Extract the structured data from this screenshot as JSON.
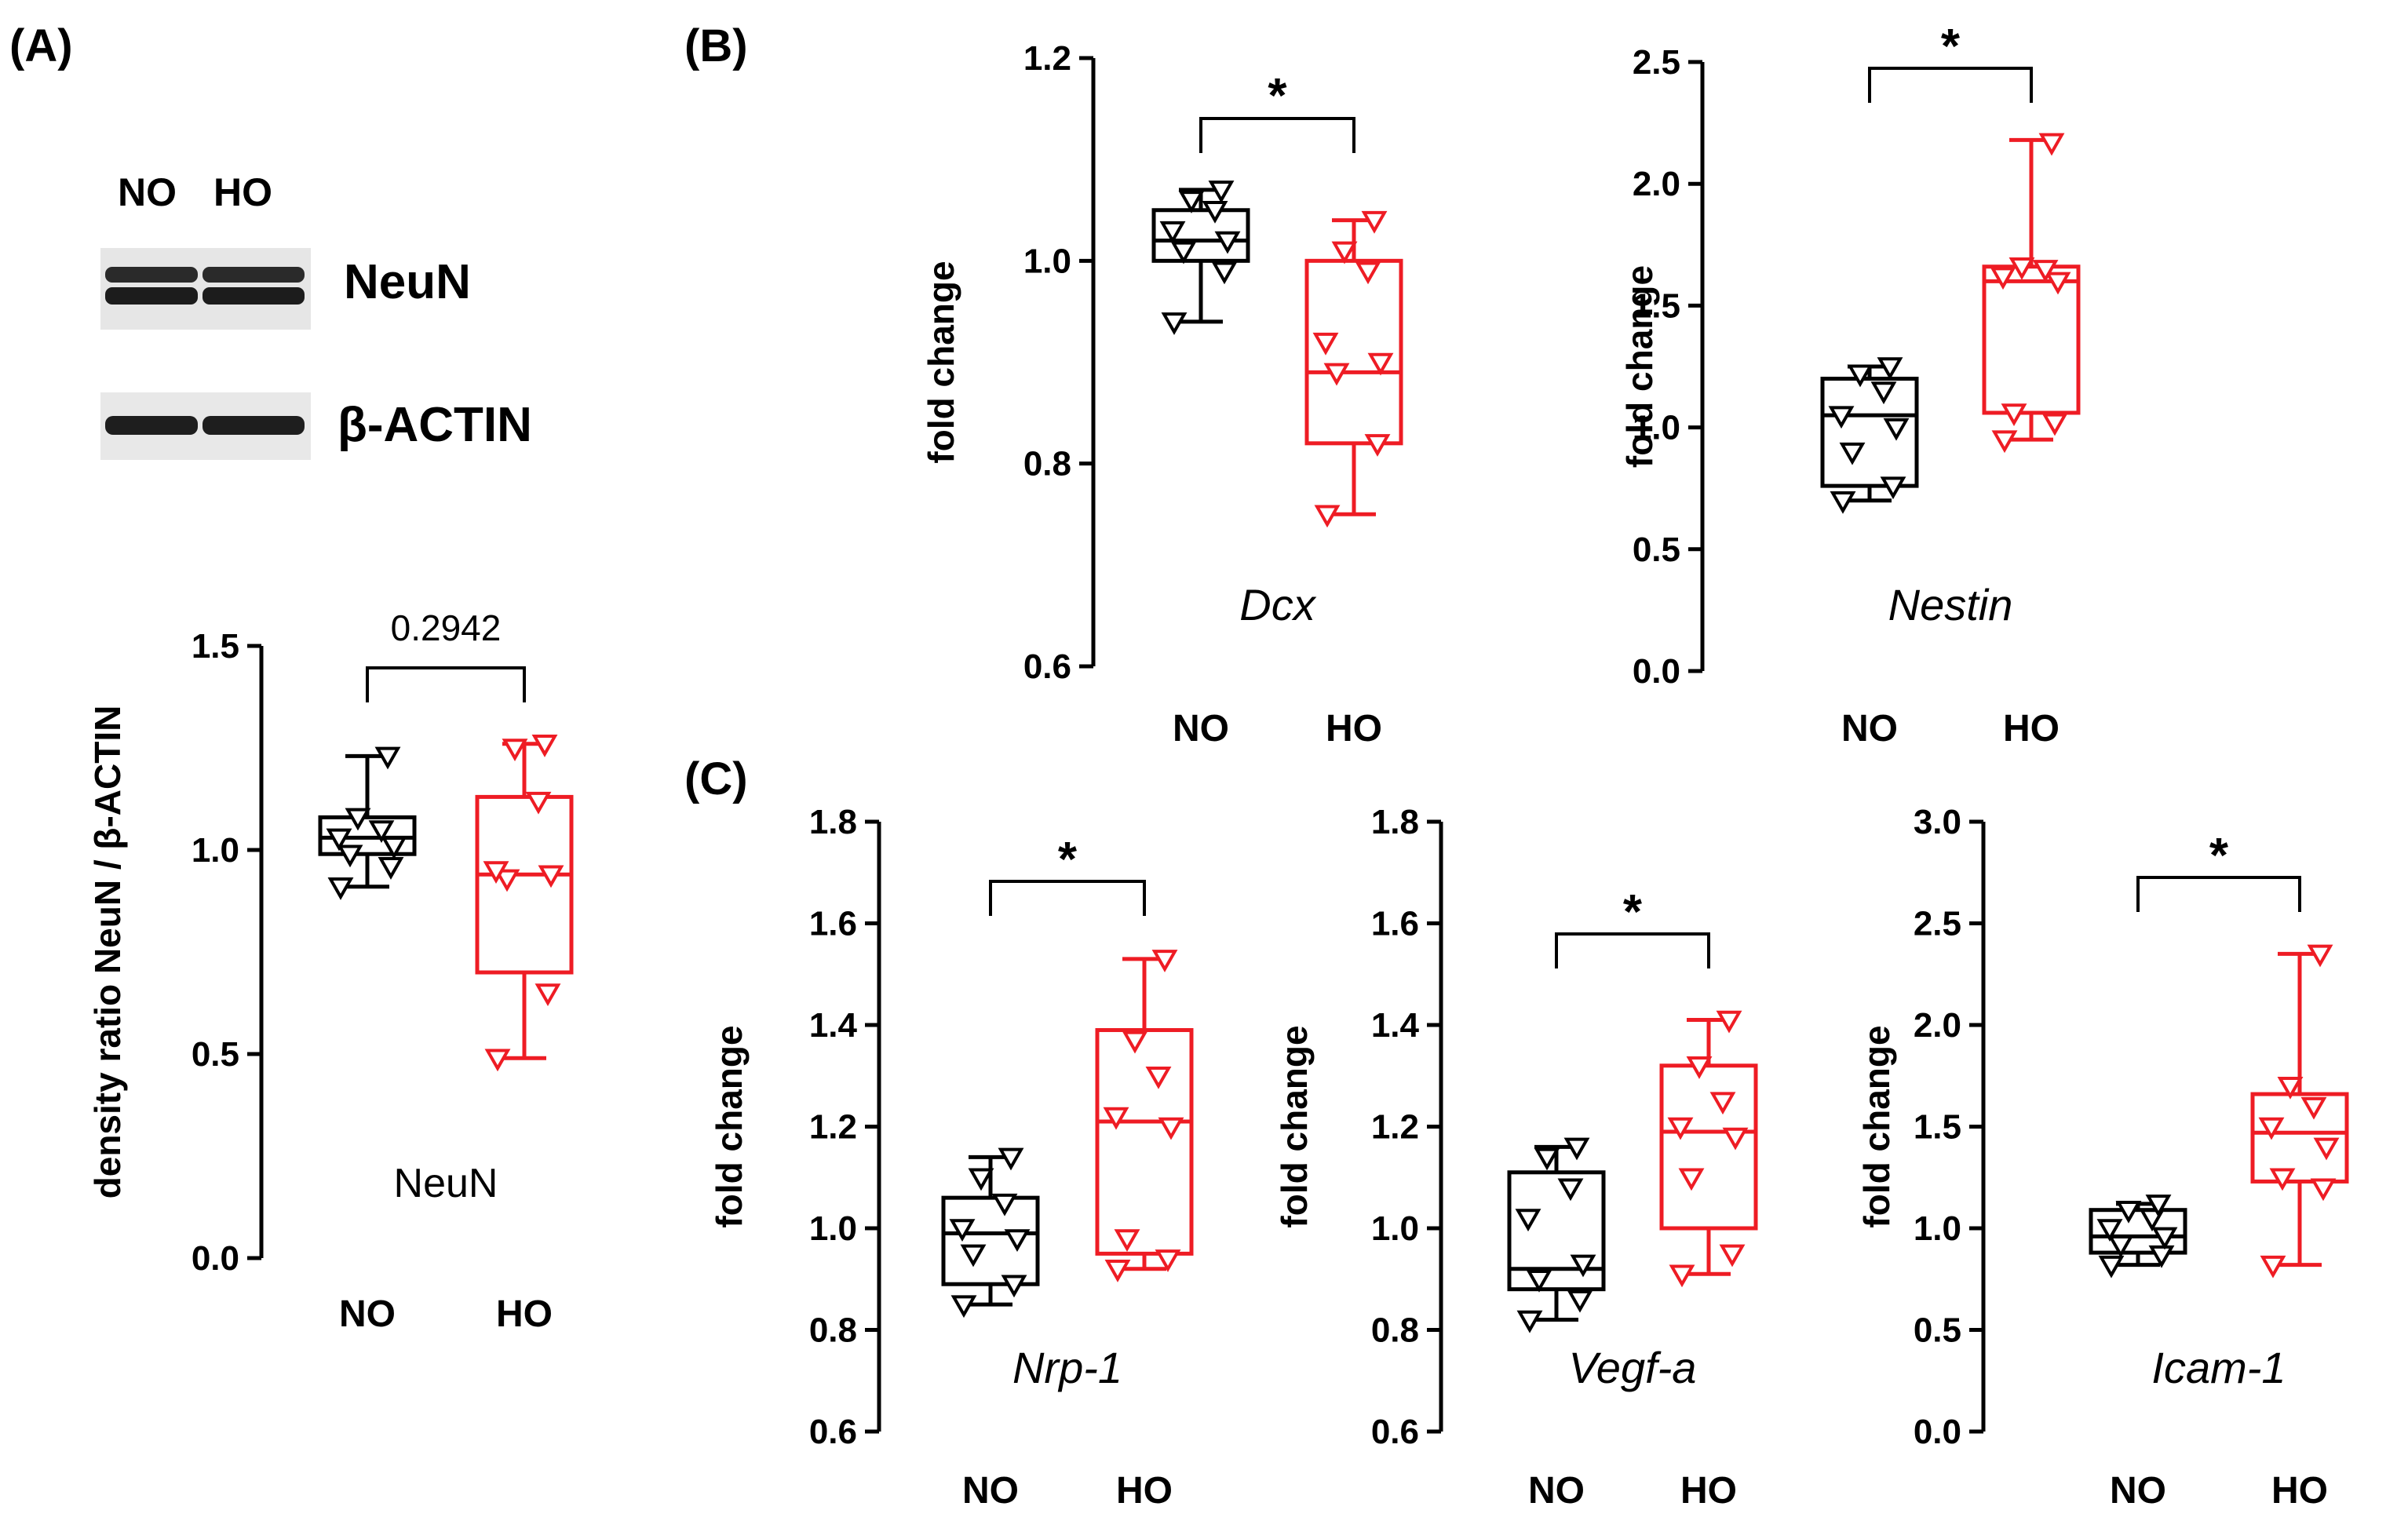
{
  "colors": {
    "NO": "#000000",
    "HO": "#ee1c24"
  },
  "blot": {
    "panel": "(A)",
    "lanes": [
      "NO",
      "HO"
    ],
    "rows": [
      {
        "name": "NeuN"
      },
      {
        "name": "β-ACTIN"
      }
    ]
  },
  "panels": {
    "A": "(A)",
    "B": "(B)",
    "C": "(C)"
  },
  "chart_data": [
    {
      "id": "neun",
      "type": "box",
      "title": "NeuN",
      "title_style": "plain",
      "ylabel": "density ratio NeuN / β-ACTIN",
      "ylim": [
        0.0,
        1.5
      ],
      "yticks": [
        "0.0",
        "0.5",
        "1.0",
        "1.5"
      ],
      "ytick_values": [
        0.0,
        0.5,
        1.0,
        1.5
      ],
      "categories": [
        "NO",
        "HO"
      ],
      "significance": "0.2942",
      "series": [
        {
          "name": "NO",
          "min": 0.91,
          "q1": 0.99,
          "median": 1.03,
          "q3": 1.08,
          "max": 1.23,
          "points": [
            0.91,
            0.96,
            0.99,
            1.01,
            1.03,
            1.05,
            1.08,
            1.23
          ]
        },
        {
          "name": "HO",
          "min": 0.49,
          "q1": 0.7,
          "median": 0.94,
          "q3": 1.13,
          "max": 1.26,
          "points": [
            0.49,
            0.65,
            0.93,
            0.94,
            0.95,
            1.12,
            1.25,
            1.26
          ]
        }
      ]
    },
    {
      "id": "dcx",
      "type": "box",
      "title": "Dcx",
      "title_style": "italic",
      "ylabel": "fold change",
      "ylim": [
        0.6,
        1.2
      ],
      "yticks": [
        "0.6",
        "0.8",
        "1.0",
        "1.2"
      ],
      "ytick_values": [
        0.6,
        0.8,
        1.0,
        1.2
      ],
      "categories": [
        "NO",
        "HO"
      ],
      "significance": "*",
      "series": [
        {
          "name": "NO",
          "min": 0.94,
          "q1": 1.0,
          "median": 1.02,
          "q3": 1.05,
          "max": 1.07,
          "points": [
            0.94,
            0.99,
            1.01,
            1.02,
            1.03,
            1.05,
            1.06,
            1.07
          ]
        },
        {
          "name": "HO",
          "min": 0.75,
          "q1": 0.82,
          "median": 0.89,
          "q3": 1.0,
          "max": 1.04,
          "points": [
            0.75,
            0.82,
            0.89,
            0.9,
            0.92,
            0.99,
            1.01,
            1.04
          ]
        }
      ]
    },
    {
      "id": "nestin",
      "type": "box",
      "title": "Nestin",
      "title_style": "italic",
      "ylabel": "fold change",
      "ylim": [
        0.0,
        2.5
      ],
      "yticks": [
        "0.0",
        "0.5",
        "1.0",
        "1.5",
        "2.0",
        "2.5"
      ],
      "ytick_values": [
        0.0,
        0.5,
        1.0,
        1.5,
        2.0,
        2.5
      ],
      "categories": [
        "NO",
        "HO"
      ],
      "significance": "*",
      "series": [
        {
          "name": "NO",
          "min": 0.7,
          "q1": 0.76,
          "median": 1.05,
          "q3": 1.2,
          "max": 1.25,
          "points": [
            0.7,
            0.76,
            0.9,
            1.0,
            1.05,
            1.15,
            1.22,
            1.25
          ]
        },
        {
          "name": "HO",
          "min": 0.95,
          "q1": 1.06,
          "median": 1.6,
          "q3": 1.66,
          "max": 2.18,
          "points": [
            0.95,
            1.02,
            1.06,
            1.6,
            1.62,
            1.65,
            1.66,
            2.17
          ]
        }
      ]
    },
    {
      "id": "nrp1",
      "type": "box",
      "title": "Nrp-1",
      "title_style": "italic",
      "ylabel": "fold change",
      "ylim": [
        0.6,
        1.8
      ],
      "yticks": [
        "0.6",
        "0.8",
        "1.0",
        "1.2",
        "1.4",
        "1.6",
        "1.8"
      ],
      "ytick_values": [
        0.6,
        0.8,
        1.0,
        1.2,
        1.4,
        1.6,
        1.8
      ],
      "categories": [
        "NO",
        "HO"
      ],
      "significance": "*",
      "series": [
        {
          "name": "NO",
          "min": 0.85,
          "q1": 0.89,
          "median": 0.99,
          "q3": 1.06,
          "max": 1.14,
          "points": [
            0.85,
            0.89,
            0.95,
            0.98,
            1.0,
            1.05,
            1.1,
            1.14
          ]
        },
        {
          "name": "HO",
          "min": 0.92,
          "q1": 0.95,
          "median": 1.21,
          "q3": 1.39,
          "max": 1.53,
          "points": [
            0.92,
            0.94,
            0.98,
            1.2,
            1.22,
            1.3,
            1.37,
            1.53
          ]
        }
      ]
    },
    {
      "id": "vegfa",
      "type": "box",
      "title": "Vegf-a",
      "title_style": "italic",
      "ylabel": "fold change",
      "ylim": [
        0.6,
        1.8
      ],
      "yticks": [
        "0.6",
        "0.8",
        "1.0",
        "1.2",
        "1.4",
        "1.6",
        "1.8"
      ],
      "ytick_values": [
        0.6,
        0.8,
        1.0,
        1.2,
        1.4,
        1.6,
        1.8
      ],
      "categories": [
        "NO",
        "HO"
      ],
      "significance": "*",
      "series": [
        {
          "name": "NO",
          "min": 0.82,
          "q1": 0.88,
          "median": 0.92,
          "q3": 1.11,
          "max": 1.16,
          "points": [
            0.82,
            0.86,
            0.9,
            0.93,
            1.02,
            1.08,
            1.14,
            1.16
          ]
        },
        {
          "name": "HO",
          "min": 0.91,
          "q1": 1.0,
          "median": 1.19,
          "q3": 1.32,
          "max": 1.41,
          "points": [
            0.91,
            0.95,
            1.1,
            1.18,
            1.2,
            1.25,
            1.32,
            1.41
          ]
        }
      ]
    },
    {
      "id": "icam1",
      "type": "box",
      "title": "Icam-1",
      "title_style": "italic",
      "ylabel": "fold change",
      "ylim": [
        0.0,
        3.0
      ],
      "yticks": [
        "0.0",
        "0.5",
        "1.0",
        "1.5",
        "2.0",
        "2.5",
        "3.0"
      ],
      "ytick_values": [
        0.0,
        0.5,
        1.0,
        1.5,
        2.0,
        2.5,
        3.0
      ],
      "categories": [
        "NO",
        "HO"
      ],
      "significance": "*",
      "series": [
        {
          "name": "NO",
          "min": 0.82,
          "q1": 0.88,
          "median": 0.96,
          "q3": 1.09,
          "max": 1.12,
          "points": [
            0.82,
            0.87,
            0.92,
            0.96,
            1.0,
            1.05,
            1.09,
            1.12
          ]
        },
        {
          "name": "HO",
          "min": 0.82,
          "q1": 1.23,
          "median": 1.47,
          "q3": 1.66,
          "max": 2.35,
          "points": [
            0.82,
            1.2,
            1.25,
            1.4,
            1.5,
            1.6,
            1.7,
            2.35
          ]
        }
      ]
    }
  ]
}
